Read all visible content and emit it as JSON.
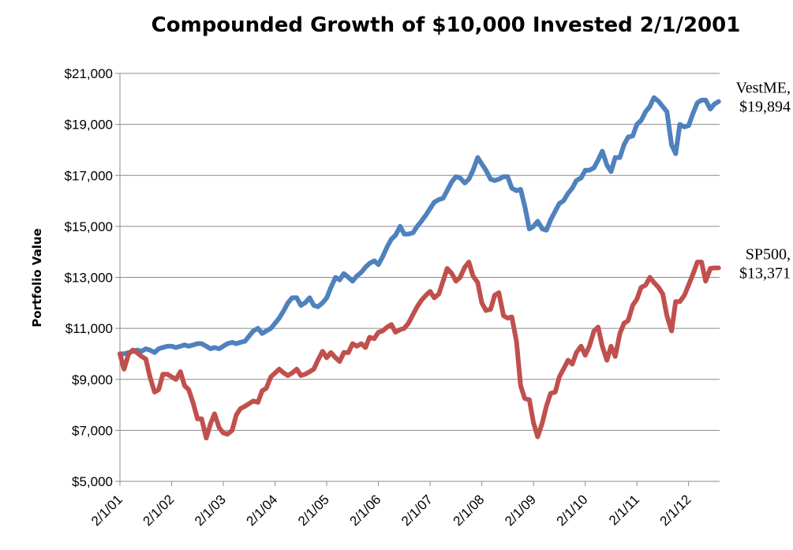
{
  "chart_data": {
    "type": "line",
    "title": "Compounded Growth of $10,000 Invested 2/1/2001",
    "xlabel": "",
    "ylabel": "Portfolio Value",
    "ylim": [
      5000,
      21000
    ],
    "yticks": [
      "$5,000",
      "$7,000",
      "$9,000",
      "$11,000",
      "$13,000",
      "$15,000",
      "$17,000",
      "$19,000",
      "$21,000"
    ],
    "xlim": [
      2001.0,
      2012.6
    ],
    "xticks": [
      {
        "label": "2/1/01",
        "x": 2001
      },
      {
        "label": "2/1/02",
        "x": 2002
      },
      {
        "label": "2/1/03",
        "x": 2003
      },
      {
        "label": "2/1/04",
        "x": 2004
      },
      {
        "label": "2/1/05",
        "x": 2005
      },
      {
        "label": "2/1/06",
        "x": 2006
      },
      {
        "label": "2/1/07",
        "x": 2007
      },
      {
        "label": "2/1/08",
        "x": 2008
      },
      {
        "label": "2/1/09",
        "x": 2009
      },
      {
        "label": "2/1/10",
        "x": 2010
      },
      {
        "label": "2/1/11",
        "x": 2011
      },
      {
        "label": "2/1/12",
        "x": 2012
      }
    ],
    "grid": true,
    "series": [
      {
        "name": "VestME",
        "end_label_name": "VestME,",
        "end_label_value": "$19,894",
        "color": "#4f81bd",
        "points": [
          [
            2001.0,
            10000
          ],
          [
            2001.08,
            10000
          ],
          [
            2001.17,
            10050
          ],
          [
            2001.25,
            10100
          ],
          [
            2001.33,
            10150
          ],
          [
            2001.42,
            10100
          ],
          [
            2001.5,
            10200
          ],
          [
            2001.58,
            10150
          ],
          [
            2001.67,
            10050
          ],
          [
            2001.75,
            10200
          ],
          [
            2001.83,
            10250
          ],
          [
            2001.92,
            10300
          ],
          [
            2002.0,
            10300
          ],
          [
            2002.08,
            10250
          ],
          [
            2002.17,
            10300
          ],
          [
            2002.25,
            10350
          ],
          [
            2002.33,
            10300
          ],
          [
            2002.42,
            10350
          ],
          [
            2002.5,
            10400
          ],
          [
            2002.58,
            10400
          ],
          [
            2002.67,
            10300
          ],
          [
            2002.75,
            10200
          ],
          [
            2002.83,
            10250
          ],
          [
            2002.92,
            10200
          ],
          [
            2003.0,
            10300
          ],
          [
            2003.08,
            10400
          ],
          [
            2003.17,
            10450
          ],
          [
            2003.25,
            10400
          ],
          [
            2003.33,
            10450
          ],
          [
            2003.42,
            10500
          ],
          [
            2003.5,
            10700
          ],
          [
            2003.58,
            10900
          ],
          [
            2003.67,
            11000
          ],
          [
            2003.75,
            10800
          ],
          [
            2003.83,
            10900
          ],
          [
            2003.92,
            11000
          ],
          [
            2004.0,
            11200
          ],
          [
            2004.08,
            11400
          ],
          [
            2004.17,
            11700
          ],
          [
            2004.25,
            12000
          ],
          [
            2004.33,
            12200
          ],
          [
            2004.42,
            12200
          ],
          [
            2004.5,
            11900
          ],
          [
            2004.58,
            12000
          ],
          [
            2004.67,
            12200
          ],
          [
            2004.75,
            11900
          ],
          [
            2004.83,
            11850
          ],
          [
            2004.92,
            12000
          ],
          [
            2005.0,
            12200
          ],
          [
            2005.08,
            12600
          ],
          [
            2005.17,
            13000
          ],
          [
            2005.25,
            12900
          ],
          [
            2005.33,
            13150
          ],
          [
            2005.42,
            13000
          ],
          [
            2005.5,
            12850
          ],
          [
            2005.58,
            13050
          ],
          [
            2005.67,
            13200
          ],
          [
            2005.75,
            13400
          ],
          [
            2005.83,
            13550
          ],
          [
            2005.92,
            13650
          ],
          [
            2006.0,
            13500
          ],
          [
            2006.08,
            13800
          ],
          [
            2006.17,
            14200
          ],
          [
            2006.25,
            14500
          ],
          [
            2006.33,
            14650
          ],
          [
            2006.42,
            15000
          ],
          [
            2006.5,
            14700
          ],
          [
            2006.58,
            14700
          ],
          [
            2006.67,
            14750
          ],
          [
            2006.75,
            15000
          ],
          [
            2006.83,
            15200
          ],
          [
            2006.92,
            15450
          ],
          [
            2007.0,
            15700
          ],
          [
            2007.08,
            15950
          ],
          [
            2007.17,
            16050
          ],
          [
            2007.25,
            16100
          ],
          [
            2007.33,
            16400
          ],
          [
            2007.42,
            16750
          ],
          [
            2007.5,
            16950
          ],
          [
            2007.58,
            16900
          ],
          [
            2007.67,
            16700
          ],
          [
            2007.75,
            16850
          ],
          [
            2007.83,
            17200
          ],
          [
            2007.92,
            17700
          ],
          [
            2008.0,
            17450
          ],
          [
            2008.08,
            17200
          ],
          [
            2008.17,
            16850
          ],
          [
            2008.25,
            16800
          ],
          [
            2008.33,
            16850
          ],
          [
            2008.42,
            16950
          ],
          [
            2008.5,
            16950
          ],
          [
            2008.58,
            16500
          ],
          [
            2008.67,
            16400
          ],
          [
            2008.75,
            16450
          ],
          [
            2008.83,
            15800
          ],
          [
            2008.92,
            14900
          ],
          [
            2009.0,
            15000
          ],
          [
            2009.08,
            15200
          ],
          [
            2009.17,
            14900
          ],
          [
            2009.25,
            14850
          ],
          [
            2009.33,
            15250
          ],
          [
            2009.42,
            15600
          ],
          [
            2009.5,
            15900
          ],
          [
            2009.58,
            16000
          ],
          [
            2009.67,
            16300
          ],
          [
            2009.75,
            16500
          ],
          [
            2009.83,
            16800
          ],
          [
            2009.92,
            16900
          ],
          [
            2010.0,
            17200
          ],
          [
            2010.08,
            17200
          ],
          [
            2010.17,
            17300
          ],
          [
            2010.25,
            17600
          ],
          [
            2010.33,
            17950
          ],
          [
            2010.42,
            17400
          ],
          [
            2010.5,
            17150
          ],
          [
            2010.58,
            17700
          ],
          [
            2010.67,
            17700
          ],
          [
            2010.75,
            18200
          ],
          [
            2010.83,
            18500
          ],
          [
            2010.92,
            18550
          ],
          [
            2011.0,
            19000
          ],
          [
            2011.08,
            19150
          ],
          [
            2011.17,
            19500
          ],
          [
            2011.25,
            19700
          ],
          [
            2011.33,
            20050
          ],
          [
            2011.42,
            19900
          ],
          [
            2011.5,
            19700
          ],
          [
            2011.58,
            19500
          ],
          [
            2011.67,
            18200
          ],
          [
            2011.75,
            17850
          ],
          [
            2011.83,
            19000
          ],
          [
            2011.92,
            18900
          ],
          [
            2012.0,
            18950
          ],
          [
            2012.08,
            19400
          ],
          [
            2012.17,
            19850
          ],
          [
            2012.25,
            19950
          ],
          [
            2012.33,
            19950
          ],
          [
            2012.42,
            19600
          ],
          [
            2012.5,
            19800
          ],
          [
            2012.58,
            19894
          ]
        ]
      },
      {
        "name": "SP500",
        "end_label_name": "SP500,",
        "end_label_value": "$13,371",
        "color": "#c0504d",
        "points": [
          [
            2001.0,
            10000
          ],
          [
            2001.08,
            9400
          ],
          [
            2001.17,
            10000
          ],
          [
            2001.25,
            10150
          ],
          [
            2001.33,
            10050
          ],
          [
            2001.42,
            9900
          ],
          [
            2001.5,
            9800
          ],
          [
            2001.58,
            9100
          ],
          [
            2001.67,
            8500
          ],
          [
            2001.75,
            8600
          ],
          [
            2001.83,
            9200
          ],
          [
            2001.92,
            9200
          ],
          [
            2002.0,
            9100
          ],
          [
            2002.08,
            9000
          ],
          [
            2002.17,
            9300
          ],
          [
            2002.25,
            8750
          ],
          [
            2002.33,
            8600
          ],
          [
            2002.42,
            8050
          ],
          [
            2002.5,
            7450
          ],
          [
            2002.58,
            7450
          ],
          [
            2002.67,
            6700
          ],
          [
            2002.75,
            7250
          ],
          [
            2002.83,
            7650
          ],
          [
            2002.92,
            7100
          ],
          [
            2003.0,
            6900
          ],
          [
            2003.08,
            6850
          ],
          [
            2003.17,
            7000
          ],
          [
            2003.25,
            7600
          ],
          [
            2003.33,
            7850
          ],
          [
            2003.42,
            7950
          ],
          [
            2003.5,
            8050
          ],
          [
            2003.58,
            8150
          ],
          [
            2003.67,
            8100
          ],
          [
            2003.75,
            8550
          ],
          [
            2003.83,
            8650
          ],
          [
            2003.92,
            9100
          ],
          [
            2004.0,
            9250
          ],
          [
            2004.08,
            9400
          ],
          [
            2004.17,
            9250
          ],
          [
            2004.25,
            9150
          ],
          [
            2004.33,
            9250
          ],
          [
            2004.42,
            9400
          ],
          [
            2004.5,
            9150
          ],
          [
            2004.58,
            9200
          ],
          [
            2004.67,
            9300
          ],
          [
            2004.75,
            9400
          ],
          [
            2004.83,
            9750
          ],
          [
            2004.92,
            10100
          ],
          [
            2005.0,
            9850
          ],
          [
            2005.08,
            10050
          ],
          [
            2005.17,
            9850
          ],
          [
            2005.25,
            9700
          ],
          [
            2005.33,
            10050
          ],
          [
            2005.42,
            10050
          ],
          [
            2005.5,
            10400
          ],
          [
            2005.58,
            10300
          ],
          [
            2005.67,
            10400
          ],
          [
            2005.75,
            10250
          ],
          [
            2005.83,
            10650
          ],
          [
            2005.92,
            10600
          ],
          [
            2006.0,
            10850
          ],
          [
            2006.08,
            10900
          ],
          [
            2006.17,
            11050
          ],
          [
            2006.25,
            11150
          ],
          [
            2006.33,
            10850
          ],
          [
            2006.42,
            10950
          ],
          [
            2006.5,
            11000
          ],
          [
            2006.58,
            11200
          ],
          [
            2006.67,
            11550
          ],
          [
            2006.75,
            11850
          ],
          [
            2006.83,
            12100
          ],
          [
            2006.92,
            12300
          ],
          [
            2007.0,
            12450
          ],
          [
            2007.08,
            12200
          ],
          [
            2007.17,
            12350
          ],
          [
            2007.25,
            12850
          ],
          [
            2007.33,
            13350
          ],
          [
            2007.42,
            13150
          ],
          [
            2007.5,
            12850
          ],
          [
            2007.58,
            13000
          ],
          [
            2007.67,
            13400
          ],
          [
            2007.75,
            13600
          ],
          [
            2007.83,
            13050
          ],
          [
            2007.92,
            12800
          ],
          [
            2008.0,
            12000
          ],
          [
            2008.08,
            11700
          ],
          [
            2008.17,
            11750
          ],
          [
            2008.25,
            12300
          ],
          [
            2008.33,
            12400
          ],
          [
            2008.42,
            11500
          ],
          [
            2008.5,
            11400
          ],
          [
            2008.58,
            11450
          ],
          [
            2008.67,
            10500
          ],
          [
            2008.75,
            8750
          ],
          [
            2008.83,
            8250
          ],
          [
            2008.92,
            8200
          ],
          [
            2009.0,
            7300
          ],
          [
            2009.08,
            6750
          ],
          [
            2009.17,
            7300
          ],
          [
            2009.25,
            7950
          ],
          [
            2009.33,
            8450
          ],
          [
            2009.42,
            8500
          ],
          [
            2009.5,
            9100
          ],
          [
            2009.58,
            9400
          ],
          [
            2009.67,
            9750
          ],
          [
            2009.75,
            9600
          ],
          [
            2009.83,
            10050
          ],
          [
            2009.92,
            10300
          ],
          [
            2010.0,
            9950
          ],
          [
            2010.08,
            10300
          ],
          [
            2010.17,
            10900
          ],
          [
            2010.25,
            11050
          ],
          [
            2010.33,
            10300
          ],
          [
            2010.42,
            9750
          ],
          [
            2010.5,
            10300
          ],
          [
            2010.58,
            9900
          ],
          [
            2010.67,
            10800
          ],
          [
            2010.75,
            11200
          ],
          [
            2010.83,
            11300
          ],
          [
            2010.92,
            11900
          ],
          [
            2011.0,
            12150
          ],
          [
            2011.08,
            12600
          ],
          [
            2011.17,
            12700
          ],
          [
            2011.25,
            13000
          ],
          [
            2011.33,
            12800
          ],
          [
            2011.42,
            12600
          ],
          [
            2011.5,
            12350
          ],
          [
            2011.58,
            11500
          ],
          [
            2011.67,
            10900
          ],
          [
            2011.75,
            12050
          ],
          [
            2011.83,
            12050
          ],
          [
            2011.92,
            12300
          ],
          [
            2012.0,
            12700
          ],
          [
            2012.08,
            13100
          ],
          [
            2012.17,
            13600
          ],
          [
            2012.25,
            13600
          ],
          [
            2012.33,
            12850
          ],
          [
            2012.42,
            13350
          ],
          [
            2012.5,
            13371
          ],
          [
            2012.58,
            13371
          ]
        ]
      }
    ]
  }
}
